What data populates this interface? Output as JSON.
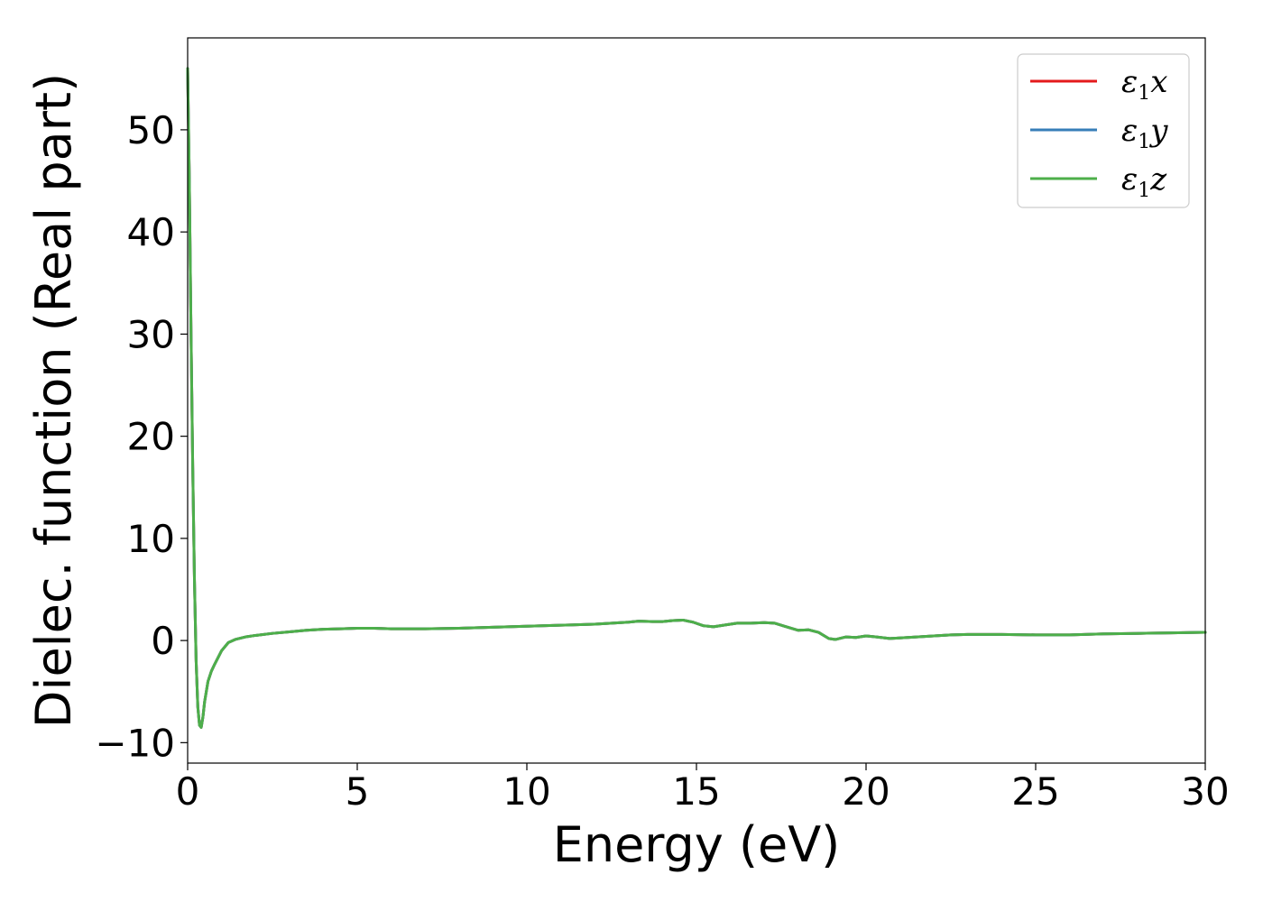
{
  "chart_data": {
    "type": "line",
    "title": "",
    "xlabel": "Energy (eV)",
    "ylabel": "Dielec. function (Real part)",
    "xlim": [
      0,
      30
    ],
    "ylim": [
      -12,
      59
    ],
    "xticks": [
      0,
      5,
      10,
      15,
      20,
      25,
      30
    ],
    "yticks": [
      -10,
      0,
      10,
      20,
      30,
      40,
      50
    ],
    "xtick_labels": [
      "0",
      "5",
      "10",
      "15",
      "20",
      "25",
      "30"
    ],
    "ytick_labels": [
      "−10",
      "0",
      "10",
      "20",
      "30",
      "40",
      "50"
    ],
    "grid": false,
    "legend_position": "top-right",
    "series": [
      {
        "name": "ε1x",
        "legend_base": "ε",
        "legend_sub": "1",
        "legend_var": "x",
        "color": "#e41a1c",
        "x": [
          0.0,
          0.05,
          0.1,
          0.15,
          0.2,
          0.25,
          0.3,
          0.35,
          0.4,
          0.45,
          0.5,
          0.6,
          0.7,
          0.8,
          1.0,
          1.2,
          1.4,
          1.7,
          2.0,
          2.5,
          3.0,
          3.5,
          4.0,
          4.5,
          5.0,
          5.5,
          6.0,
          7.0,
          8.0,
          9.0,
          10.0,
          11.0,
          12.0,
          12.5,
          13.0,
          13.3,
          13.7,
          14.0,
          14.3,
          14.6,
          14.9,
          15.2,
          15.5,
          15.8,
          16.2,
          16.6,
          17.0,
          17.3,
          17.6,
          18.0,
          18.3,
          18.6,
          18.9,
          19.1,
          19.4,
          19.7,
          20.0,
          20.3,
          20.7,
          21.0,
          21.5,
          22.0,
          22.5,
          23.0,
          24.0,
          25.0,
          26.0,
          27.0,
          28.0,
          29.0,
          30.0
        ],
        "y": [
          56.0,
          45.0,
          30.0,
          17.0,
          6.0,
          -2.0,
          -6.5,
          -8.3,
          -8.5,
          -7.5,
          -6.0,
          -4.0,
          -3.0,
          -2.3,
          -1.0,
          -0.2,
          0.1,
          0.35,
          0.5,
          0.7,
          0.85,
          1.0,
          1.1,
          1.15,
          1.2,
          1.2,
          1.15,
          1.15,
          1.2,
          1.3,
          1.4,
          1.5,
          1.6,
          1.7,
          1.8,
          1.9,
          1.85,
          1.85,
          1.95,
          2.0,
          1.8,
          1.45,
          1.35,
          1.5,
          1.7,
          1.7,
          1.75,
          1.7,
          1.4,
          1.0,
          1.05,
          0.8,
          0.2,
          0.1,
          0.35,
          0.3,
          0.45,
          0.35,
          0.2,
          0.25,
          0.35,
          0.45,
          0.55,
          0.6,
          0.6,
          0.55,
          0.55,
          0.65,
          0.7,
          0.75,
          0.8
        ]
      },
      {
        "name": "ε1y",
        "legend_base": "ε",
        "legend_sub": "1",
        "legend_var": "y",
        "color": "#377eb8",
        "x": [
          0.0,
          0.05,
          0.1,
          0.15,
          0.2,
          0.25,
          0.3,
          0.35,
          0.4,
          0.45,
          0.5,
          0.6,
          0.7,
          0.8,
          1.0,
          1.2,
          1.4,
          1.7,
          2.0,
          2.5,
          3.0,
          3.5,
          4.0,
          4.5,
          5.0,
          5.5,
          6.0,
          7.0,
          8.0,
          9.0,
          10.0,
          11.0,
          12.0,
          12.5,
          13.0,
          13.3,
          13.7,
          14.0,
          14.3,
          14.6,
          14.9,
          15.2,
          15.5,
          15.8,
          16.2,
          16.6,
          17.0,
          17.3,
          17.6,
          18.0,
          18.3,
          18.6,
          18.9,
          19.1,
          19.4,
          19.7,
          20.0,
          20.3,
          20.7,
          21.0,
          21.5,
          22.0,
          22.5,
          23.0,
          24.0,
          25.0,
          26.0,
          27.0,
          28.0,
          29.0,
          30.0
        ],
        "y": [
          56.0,
          45.0,
          30.0,
          17.0,
          6.0,
          -2.0,
          -6.5,
          -8.3,
          -8.5,
          -7.5,
          -6.0,
          -4.0,
          -3.0,
          -2.3,
          -1.0,
          -0.2,
          0.1,
          0.35,
          0.5,
          0.7,
          0.85,
          1.0,
          1.1,
          1.15,
          1.2,
          1.2,
          1.15,
          1.15,
          1.2,
          1.3,
          1.4,
          1.5,
          1.6,
          1.7,
          1.8,
          1.9,
          1.85,
          1.85,
          1.95,
          2.0,
          1.8,
          1.45,
          1.35,
          1.5,
          1.7,
          1.7,
          1.75,
          1.7,
          1.4,
          1.0,
          1.05,
          0.8,
          0.2,
          0.1,
          0.35,
          0.3,
          0.45,
          0.35,
          0.2,
          0.25,
          0.35,
          0.45,
          0.55,
          0.6,
          0.6,
          0.55,
          0.55,
          0.65,
          0.7,
          0.75,
          0.8
        ]
      },
      {
        "name": "ε1z",
        "legend_base": "ε",
        "legend_sub": "1",
        "legend_var": "z",
        "color": "#4daf4a",
        "x": [
          0.0,
          0.05,
          0.1,
          0.15,
          0.2,
          0.25,
          0.3,
          0.35,
          0.4,
          0.45,
          0.5,
          0.6,
          0.7,
          0.8,
          1.0,
          1.2,
          1.4,
          1.7,
          2.0,
          2.5,
          3.0,
          3.5,
          4.0,
          4.5,
          5.0,
          5.5,
          6.0,
          7.0,
          8.0,
          9.0,
          10.0,
          11.0,
          12.0,
          12.5,
          13.0,
          13.3,
          13.7,
          14.0,
          14.3,
          14.6,
          14.9,
          15.2,
          15.5,
          15.8,
          16.2,
          16.6,
          17.0,
          17.3,
          17.6,
          18.0,
          18.3,
          18.6,
          18.9,
          19.1,
          19.4,
          19.7,
          20.0,
          20.3,
          20.7,
          21.0,
          21.5,
          22.0,
          22.5,
          23.0,
          24.0,
          25.0,
          26.0,
          27.0,
          28.0,
          29.0,
          30.0
        ],
        "y": [
          56.0,
          45.0,
          30.0,
          17.0,
          6.0,
          -2.0,
          -6.5,
          -8.3,
          -8.5,
          -7.5,
          -6.0,
          -4.0,
          -3.0,
          -2.3,
          -1.0,
          -0.2,
          0.1,
          0.35,
          0.5,
          0.7,
          0.85,
          1.0,
          1.1,
          1.15,
          1.2,
          1.2,
          1.15,
          1.15,
          1.2,
          1.3,
          1.4,
          1.5,
          1.6,
          1.7,
          1.8,
          1.9,
          1.85,
          1.85,
          1.95,
          2.0,
          1.8,
          1.45,
          1.35,
          1.5,
          1.7,
          1.7,
          1.75,
          1.7,
          1.4,
          1.0,
          1.05,
          0.8,
          0.2,
          0.1,
          0.35,
          0.3,
          0.45,
          0.35,
          0.2,
          0.25,
          0.35,
          0.45,
          0.55,
          0.6,
          0.6,
          0.55,
          0.55,
          0.65,
          0.7,
          0.75,
          0.8
        ]
      }
    ]
  }
}
